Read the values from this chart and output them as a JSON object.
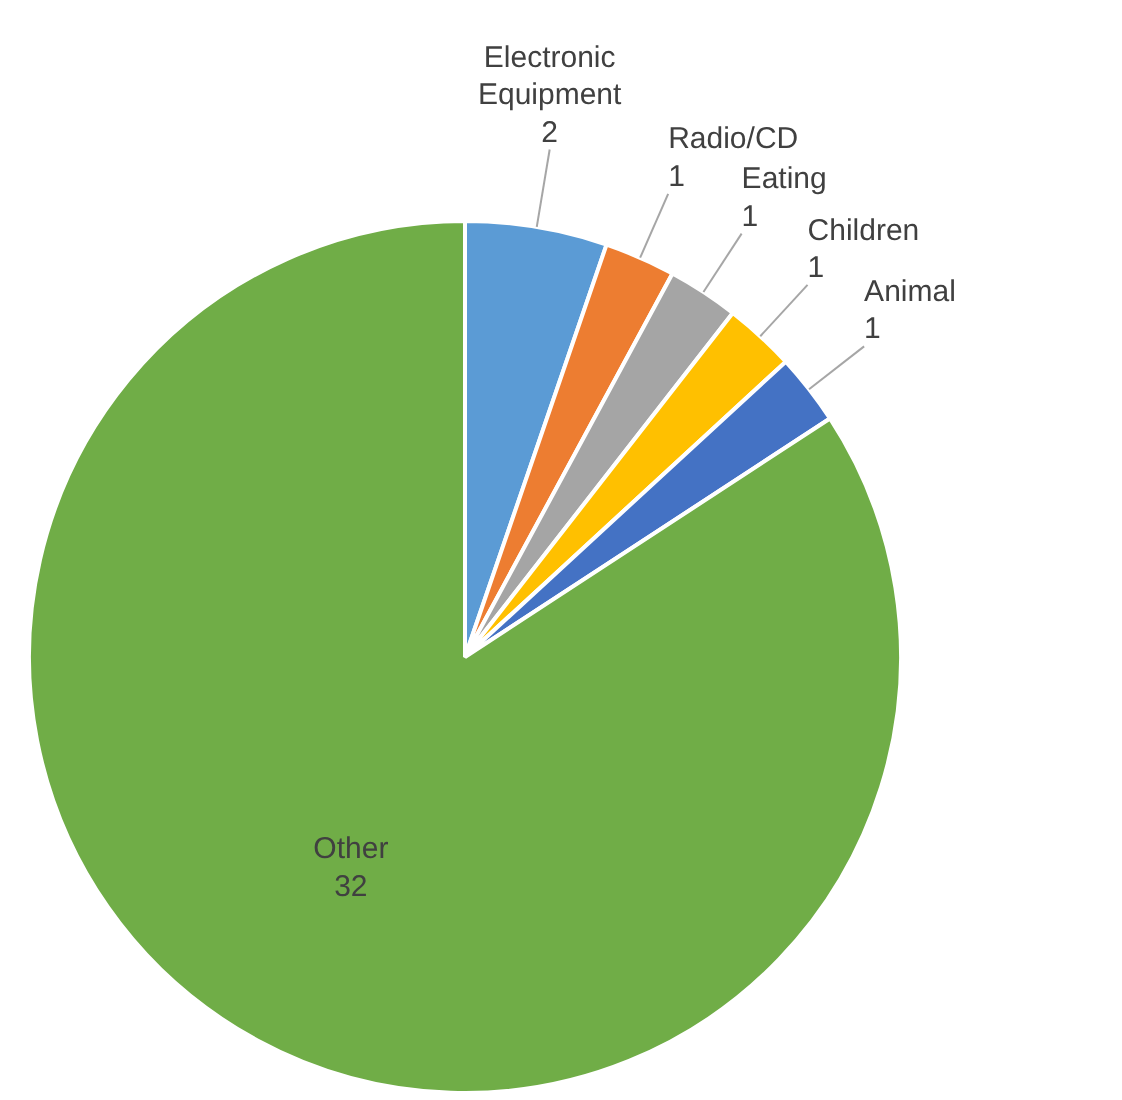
{
  "chart_data": {
    "type": "pie",
    "data_labels": true,
    "categories": [
      "Electronic Equipment",
      "Radio/CD",
      "Eating",
      "Children",
      "Animal",
      "Other"
    ],
    "values": [
      2,
      1,
      1,
      1,
      1,
      32
    ],
    "colors": [
      "#5b9bd5",
      "#ed7d31",
      "#a5a5a5",
      "#ffc000",
      "#4472c4",
      "#70ad47"
    ]
  }
}
